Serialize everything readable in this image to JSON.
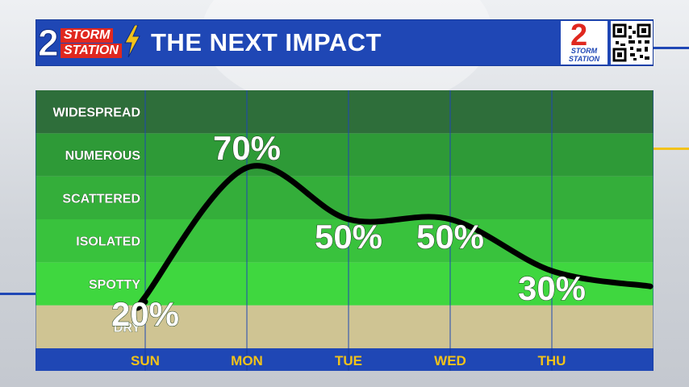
{
  "header": {
    "title": "THE NEXT IMPACT",
    "logo_numeral": "2",
    "logo_word_1": "STORM",
    "logo_word_2": "STATION",
    "brand_numeral": "2",
    "brand_word_1": "STORM",
    "brand_word_2": "STATION",
    "qr_icon": "qr-code-icon"
  },
  "colors": {
    "header_blue": "#1f47b5",
    "brand_red": "#e0281f",
    "accent_yellow": "#f2c21a",
    "accent_blue": "#1f47b5",
    "label_gold": "#f2c21a",
    "dry_band": "#cfc493",
    "line_color": "#000000",
    "value_text": "#ffffff"
  },
  "chart_data": {
    "type": "line",
    "y_categories": [
      "DRY",
      "SPOTTY",
      "ISOLATED",
      "SCATTERED",
      "NUMEROUS",
      "WIDESPREAD"
    ],
    "y_category_colors": [
      "#cfc493",
      "#3fd73f",
      "#39c23d",
      "#34ae3a",
      "#2e9a37",
      "#2e6e3a"
    ],
    "categories": [
      "SUN",
      "MON",
      "TUE",
      "WED",
      "THU"
    ],
    "series": [
      {
        "values": [
          20,
          70,
          50,
          50,
          30
        ],
        "value_labels": [
          "20%",
          "70%",
          "50%",
          "50%",
          "30%"
        ]
      }
    ],
    "ylim": [
      0,
      100
    ],
    "grid": true,
    "legend": "none"
  }
}
